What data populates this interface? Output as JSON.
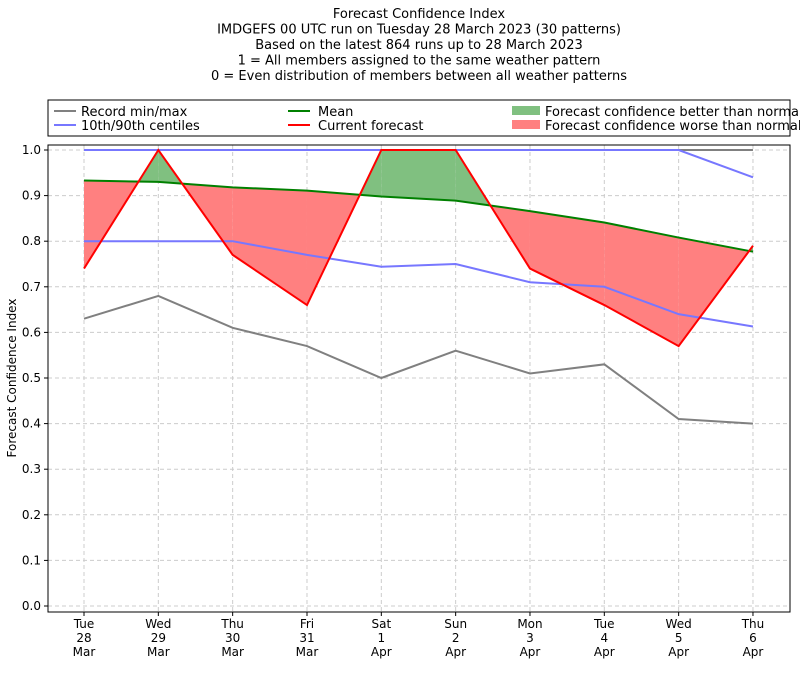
{
  "chart_data": {
    "type": "line",
    "title_lines": [
      "Forecast Confidence Index",
      "IMDGEFS 00 UTC run on Tuesday 28 March 2023 (30 patterns)",
      "Based on the latest 864 runs up to 28 March 2023",
      "1 = All members assigned to the same weather pattern",
      "0 = Even distribution of members between all weather patterns"
    ],
    "ylabel": "Forecast Confidence Index",
    "ylim": [
      0,
      1
    ],
    "yticks": [
      "0.0",
      "0.1",
      "0.2",
      "0.3",
      "0.4",
      "0.5",
      "0.6",
      "0.7",
      "0.8",
      "0.9",
      "1.0"
    ],
    "grid": true,
    "legend_placement": "top, above plot",
    "categories": [
      [
        "Tue",
        "28",
        "Mar"
      ],
      [
        "Wed",
        "29",
        "Mar"
      ],
      [
        "Thu",
        "30",
        "Mar"
      ],
      [
        "Fri",
        "31",
        "Mar"
      ],
      [
        "Sat",
        "1",
        "Apr"
      ],
      [
        "Sun",
        "2",
        "Apr"
      ],
      [
        "Mon",
        "3",
        "Apr"
      ],
      [
        "Tue",
        "4",
        "Apr"
      ],
      [
        "Wed",
        "5",
        "Apr"
      ],
      [
        "Thu",
        "6",
        "Apr"
      ]
    ],
    "series": [
      {
        "name": "Record min/max",
        "color": "#808080",
        "values_max": [
          1,
          1,
          1,
          1,
          1,
          1,
          1,
          1,
          1,
          1
        ],
        "values_min": [
          0.63,
          0.68,
          0.61,
          0.57,
          0.5,
          0.56,
          0.51,
          0.53,
          0.41,
          0.4
        ]
      },
      {
        "name": "10th/90th centiles",
        "color": "#7777ff",
        "values_max": [
          1,
          1,
          1,
          1,
          1,
          1,
          1,
          1,
          1,
          0.94
        ],
        "values_min": [
          0.8,
          0.8,
          0.8,
          0.77,
          0.744,
          0.75,
          0.71,
          0.7,
          0.64,
          0.613
        ]
      },
      {
        "name": "Mean",
        "color": "#008000",
        "values": [
          0.933,
          0.93,
          0.918,
          0.911,
          0.898,
          0.889,
          0.866,
          0.841,
          0.808,
          0.777
        ]
      },
      {
        "name": "Current forecast",
        "color": "#ff0000",
        "values": [
          0.74,
          1.0,
          0.77,
          0.66,
          1.0,
          1.0,
          0.74,
          0.66,
          0.57,
          0.79
        ]
      }
    ],
    "fills": [
      {
        "name": "Forecast confidence better than normal",
        "color": "#80c080"
      },
      {
        "name": "Forecast confidence worse than normal",
        "color": "#ff8080"
      }
    ]
  }
}
